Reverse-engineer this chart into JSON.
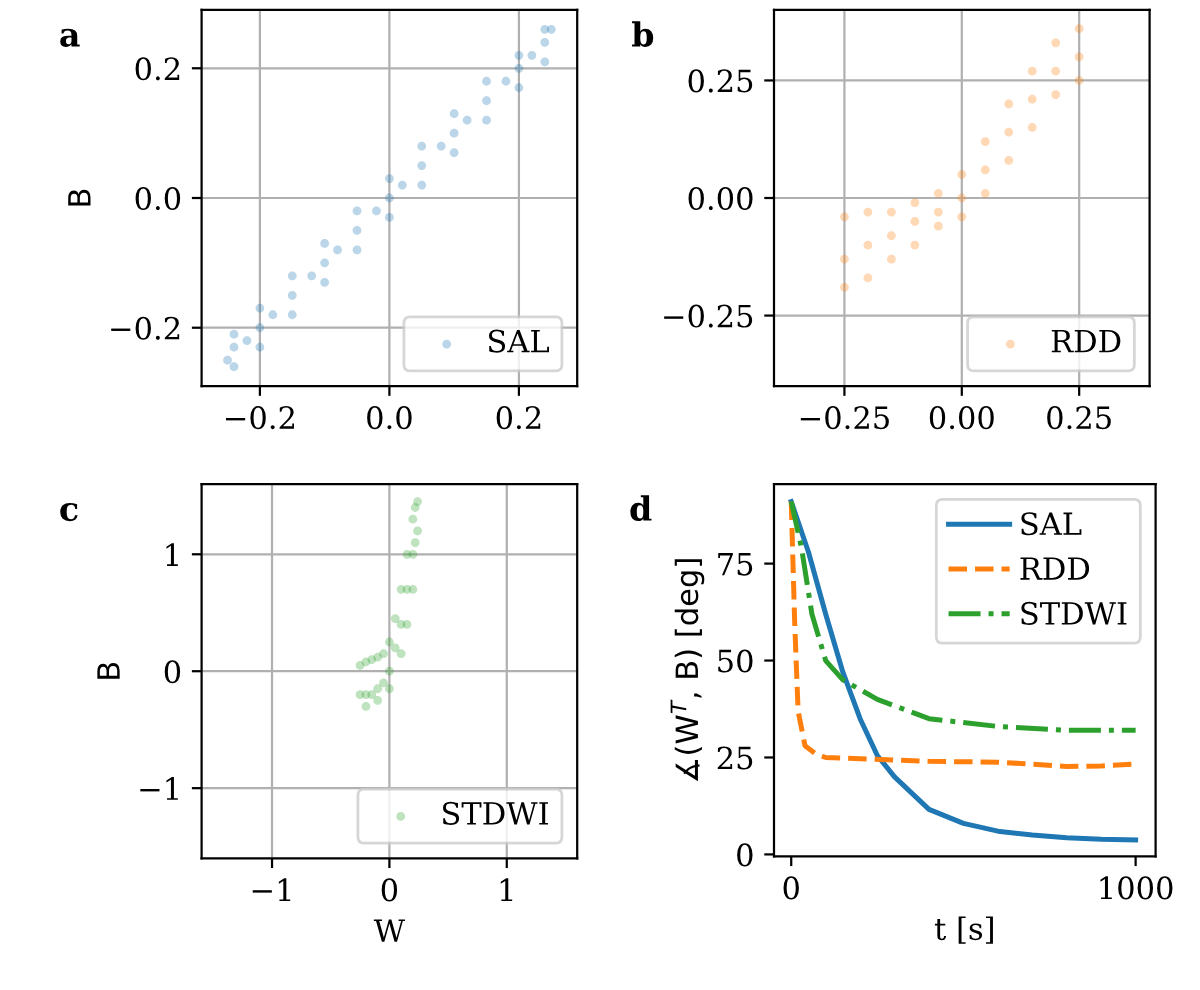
{
  "chart_data": [
    {
      "type": "scatter",
      "title": "a",
      "ylabel": "B",
      "xlim": [
        -0.29,
        0.29
      ],
      "ylim": [
        -0.29,
        0.29
      ],
      "xticks": [
        {
          "value": -0.2,
          "label": "−0.2"
        },
        {
          "value": 0.0,
          "label": "0.0"
        },
        0.2
      ],
      "yticks": [
        {
          "value": -0.2,
          "label": "−0.2"
        },
        {
          "value": 0.0,
          "label": "0.0"
        },
        0.2
      ],
      "grid": true,
      "legend": "bottom right",
      "marker": "circle",
      "series": [
        {
          "name": "SAL",
          "color": "#1f77b4",
          "x": [
            -0.25,
            -0.24,
            -0.22,
            -0.2,
            -0.18,
            -0.15,
            -0.12,
            -0.1,
            -0.08,
            -0.05,
            -0.02,
            0.0,
            0.02,
            0.05,
            0.08,
            0.1,
            0.12,
            0.15,
            0.18,
            0.2,
            0.22,
            0.24,
            0.25,
            -0.24,
            -0.2,
            -0.15,
            -0.1,
            -0.05,
            0.0,
            0.05,
            0.1,
            0.15,
            0.2,
            0.24,
            -0.24,
            -0.2,
            -0.15,
            -0.1,
            -0.05,
            0.0,
            0.05,
            0.1,
            0.15,
            0.2,
            0.24
          ],
          "values": [
            -0.25,
            -0.23,
            -0.22,
            -0.2,
            -0.18,
            -0.15,
            -0.12,
            -0.1,
            -0.08,
            -0.05,
            -0.02,
            0.0,
            0.02,
            0.05,
            0.08,
            0.1,
            0.12,
            0.15,
            0.18,
            0.2,
            0.22,
            0.24,
            0.26,
            -0.21,
            -0.17,
            -0.12,
            -0.07,
            -0.02,
            0.03,
            0.08,
            0.13,
            0.18,
            0.22,
            0.26,
            -0.26,
            -0.23,
            -0.18,
            -0.13,
            -0.08,
            -0.03,
            0.02,
            0.07,
            0.12,
            0.17,
            0.21
          ]
        }
      ]
    },
    {
      "type": "scatter",
      "title": "b",
      "xlim": [
        -0.4,
        0.4
      ],
      "ylim": [
        -0.4,
        0.4
      ],
      "xticks": [
        {
          "value": -0.25,
          "label": "−0.25"
        },
        {
          "value": 0.0,
          "label": "0.00"
        },
        0.25
      ],
      "yticks": [
        {
          "value": -0.25,
          "label": "−0.25"
        },
        {
          "value": 0.0,
          "label": "0.00"
        },
        0.25
      ],
      "grid": true,
      "legend": "bottom right",
      "marker": "circle",
      "series": [
        {
          "name": "RDD",
          "color": "#ff7f0e",
          "x": [
            -0.25,
            -0.2,
            -0.15,
            -0.1,
            -0.05,
            0.0,
            0.05,
            0.1,
            0.15,
            0.2,
            0.25,
            -0.25,
            -0.2,
            -0.15,
            -0.1,
            -0.05,
            0.0,
            0.05,
            0.1,
            0.15,
            0.2,
            0.25,
            -0.25,
            -0.2,
            -0.15,
            -0.1,
            -0.05,
            0.0,
            0.05,
            0.1,
            0.15,
            0.2,
            0.25
          ],
          "values": [
            -0.13,
            -0.1,
            -0.08,
            -0.05,
            -0.03,
            0.0,
            0.06,
            0.14,
            0.21,
            0.27,
            0.3,
            -0.04,
            -0.03,
            -0.03,
            -0.01,
            0.01,
            0.05,
            0.12,
            0.2,
            0.27,
            0.33,
            0.36,
            -0.19,
            -0.17,
            -0.13,
            -0.1,
            -0.06,
            -0.04,
            0.01,
            0.08,
            0.15,
            0.22,
            0.25
          ]
        }
      ]
    },
    {
      "type": "scatter",
      "title": "c",
      "xlabel": "W",
      "ylabel": "B",
      "xlim": [
        -1.6,
        1.6
      ],
      "ylim": [
        -1.6,
        1.6
      ],
      "xticks": [
        {
          "value": -1,
          "label": "−1"
        },
        0,
        1
      ],
      "yticks": [
        {
          "value": -1,
          "label": "−1"
        },
        0,
        1
      ],
      "grid": true,
      "legend": "bottom right",
      "marker": "circle",
      "series": [
        {
          "name": "STDWI",
          "color": "#2ca02c",
          "x": [
            -0.25,
            -0.2,
            -0.15,
            -0.1,
            -0.05,
            0.0,
            0.05,
            0.1,
            0.15,
            0.2,
            0.22,
            0.24,
            -0.25,
            -0.2,
            -0.15,
            -0.1,
            -0.05,
            0.0,
            0.05,
            0.1,
            0.15,
            0.2,
            0.22,
            -0.2,
            -0.1,
            0.0,
            0.1,
            0.15,
            0.2,
            0.24
          ],
          "values": [
            -0.2,
            -0.2,
            -0.2,
            -0.15,
            -0.1,
            0.0,
            0.2,
            0.4,
            0.7,
            1.0,
            1.1,
            1.45,
            0.05,
            0.08,
            0.1,
            0.12,
            0.15,
            0.25,
            0.45,
            0.7,
            1.0,
            1.3,
            1.4,
            -0.3,
            -0.25,
            -0.15,
            0.15,
            0.4,
            0.7,
            1.2
          ]
        }
      ]
    },
    {
      "type": "line",
      "title": "d",
      "xlabel": "t [s]",
      "ylabel": "∡(W$^{T}$, B) [deg]",
      "xlim": [
        -50,
        1058
      ],
      "ylim": [
        -0.5,
        95.5
      ],
      "xticks": [
        0,
        1000
      ],
      "yticks": [
        0,
        25,
        50,
        75
      ],
      "grid": false,
      "legend": "top right",
      "series": [
        {
          "name": "SAL",
          "color": "#1f77b4",
          "line_style": "solid",
          "x": [
            0,
            50,
            100,
            150,
            200,
            250,
            300,
            400,
            500,
            600,
            700,
            800,
            900,
            1000
          ],
          "values": [
            91,
            78,
            62,
            47,
            35,
            25.5,
            20,
            11.6,
            8,
            6,
            5,
            4.3,
            3.9,
            3.7
          ]
        },
        {
          "name": "RDD",
          "color": "#ff7f0e",
          "line_style": "dashed",
          "x": [
            0,
            10,
            20,
            40,
            70,
            100,
            200,
            400,
            600,
            800,
            900,
            1000
          ],
          "values": [
            91,
            60,
            37,
            28,
            26,
            25,
            24.7,
            24,
            23.8,
            22.7,
            22.8,
            23.3
          ]
        },
        {
          "name": "STDWI",
          "color": "#2ca02c",
          "line_style": "dashdot",
          "x": [
            0,
            30,
            60,
            100,
            150,
            250,
            400,
            600,
            800,
            1000
          ],
          "values": [
            91,
            79,
            62,
            50,
            45,
            40,
            35,
            33,
            32,
            32
          ]
        }
      ]
    }
  ]
}
